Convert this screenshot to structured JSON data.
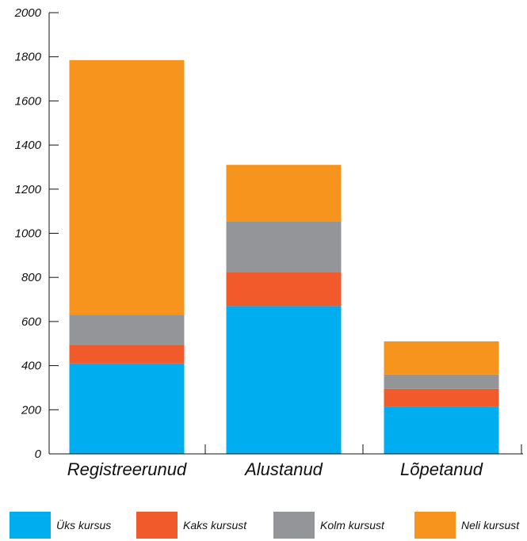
{
  "chart_data": {
    "type": "bar",
    "stacked": true,
    "categories": [
      "Registreerunud",
      "Alustanud",
      "Lõpetanud"
    ],
    "series": [
      {
        "name": "Üks kursus",
        "color": "#00aeef",
        "values": [
          410,
          670,
          215
        ]
      },
      {
        "name": "Kaks kursust",
        "color": "#f15a2b",
        "values": [
          85,
          155,
          80
        ]
      },
      {
        "name": "Kolm kursust",
        "color": "#939598",
        "values": [
          135,
          230,
          65
        ]
      },
      {
        "name": "Neli kursust",
        "color": "#f7941d",
        "values": [
          1155,
          255,
          150
        ]
      }
    ],
    "y_ticks": [
      "0",
      "200",
      "400",
      "600",
      "800",
      "1000",
      "1200",
      "1400",
      "1600",
      "1800",
      "2000"
    ],
    "ylim": [
      0,
      2000
    ],
    "grid": false,
    "legend_position": "bottom"
  }
}
